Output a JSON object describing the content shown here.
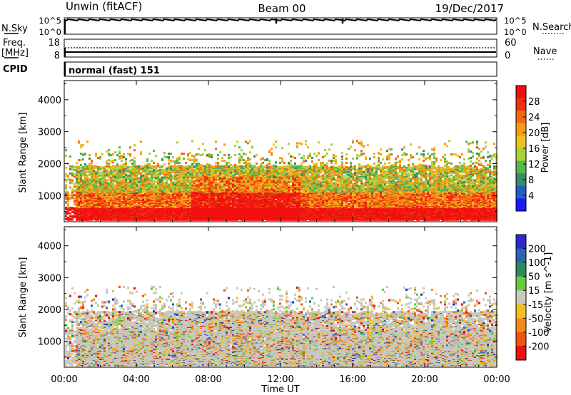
{
  "header": {
    "radar": "Unwin (fitACF)",
    "beam": "Beam 00",
    "date": "19/Dec/2017"
  },
  "nsky_panel": {
    "left_label": "N.Sky",
    "right_label": "N.Search",
    "left_ticks": [
      "10^5",
      "10^0"
    ],
    "right_ticks": [
      "10^5",
      "10^0"
    ]
  },
  "freq_panel": {
    "left_label_1": "Freq.",
    "left_label_2": "[MHz]",
    "right_label": "Nave",
    "left_ticks": [
      "18",
      "8"
    ],
    "right_ticks": [
      "60",
      "0"
    ]
  },
  "cpid": {
    "label": "CPID",
    "value": "normal (fast) 151"
  },
  "chart_data": [
    {
      "type": "heatmap",
      "title": "",
      "xlabel": "Time UT",
      "ylabel": "Slant Range [km]",
      "x_ticks": [
        "00:00",
        "04:00",
        "08:00",
        "12:00",
        "16:00",
        "20:00",
        "00:00"
      ],
      "x_range_hours": [
        0,
        24
      ],
      "y_ticks": [
        1000,
        2000,
        3000,
        4000
      ],
      "ylim": [
        180,
        4600
      ],
      "colorbar": {
        "label": "Power [dB]",
        "ticks": [
          4,
          8,
          12,
          16,
          20,
          24,
          28
        ],
        "range": [
          0,
          32
        ],
        "colors": [
          "#1a1aff",
          "#1f5fbf",
          "#3a8a6a",
          "#57b84a",
          "#a8d23a",
          "#f0c020",
          "#f59b18",
          "#f06a14",
          "#ee3010",
          "#f01010"
        ]
      }
    },
    {
      "type": "heatmap",
      "title": "",
      "xlabel": "Time UT",
      "ylabel": "Slant Range [km]",
      "x_ticks": [
        "00:00",
        "04:00",
        "08:00",
        "12:00",
        "16:00",
        "20:00",
        "00:00"
      ],
      "x_range_hours": [
        0,
        24
      ],
      "y_ticks": [
        1000,
        2000,
        3000,
        4000
      ],
      "ylim": [
        180,
        4600
      ],
      "colorbar": {
        "label": "Velocity [m s^-1]",
        "ticks": [
          200,
          100,
          50,
          15,
          -15,
          -50,
          -100,
          -200
        ],
        "colors": [
          "#2a2acc",
          "#2a66b0",
          "#2f8a5a",
          "#66cc3a",
          "#c8c8c0",
          "#f2c020",
          "#f08c18",
          "#ee5512",
          "#ee1010"
        ]
      }
    }
  ]
}
